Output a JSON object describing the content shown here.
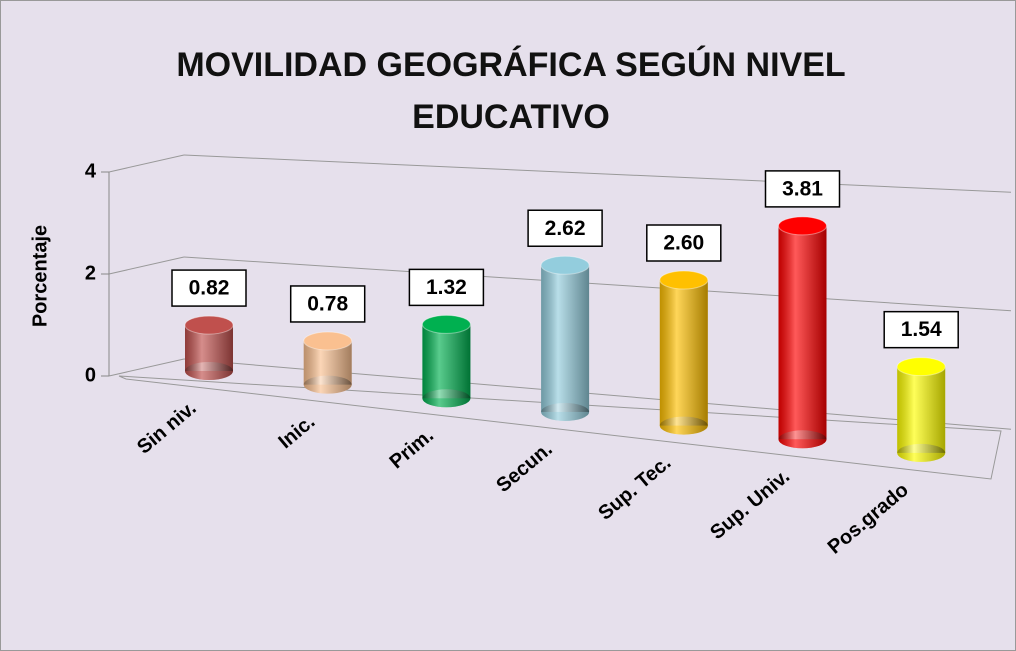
{
  "chart_data": {
    "type": "bar",
    "title": "MOVILIDAD GEOGRÁFICA SEGÚN NIVEL EDUCATIVO",
    "y_label": "Porcentaje",
    "categories": [
      "Sin niv.",
      "Inic.",
      "Prim.",
      "Secun.",
      "Sup. Tec.",
      "Sup. Univ.",
      "Pos.grado"
    ],
    "values": [
      0.82,
      0.78,
      1.32,
      2.62,
      2.6,
      3.81,
      1.54
    ],
    "value_labels": [
      "0.82",
      "0.78",
      "1.32",
      "2.62",
      "2.60",
      "3.81",
      "1.54"
    ],
    "colors": [
      "#c0504d",
      "#fac090",
      "#00b050",
      "#93cddd",
      "#ffc000",
      "#ff0000",
      "#ffff00"
    ],
    "ylim": [
      0,
      4
    ],
    "yticks": [
      0,
      2,
      4
    ],
    "grid": true
  }
}
